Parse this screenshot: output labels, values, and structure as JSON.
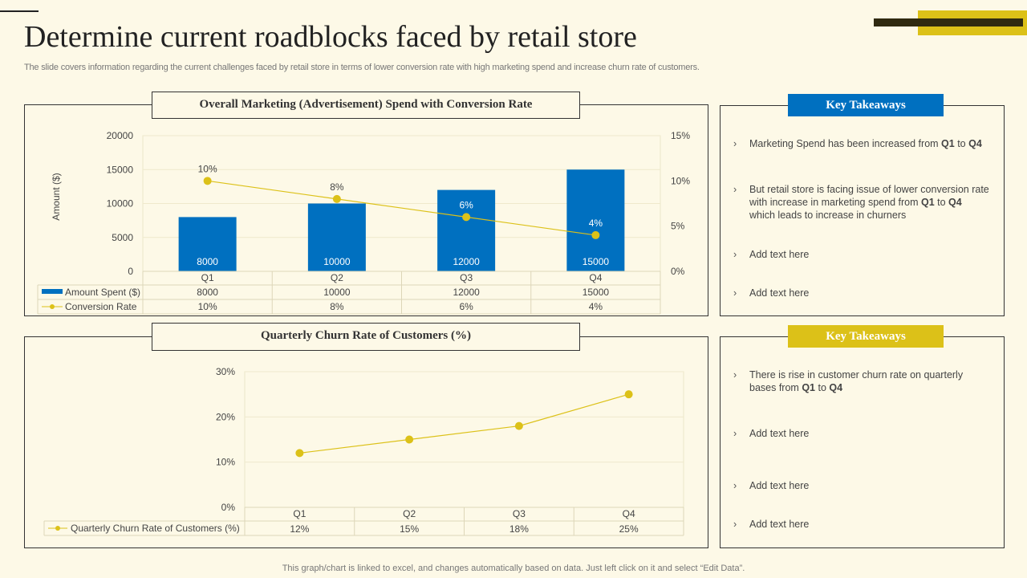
{
  "title": "Determine current roadblocks faced by retail store",
  "subtitle": "The slide covers information regarding the current challenges faced by retail store in terms of lower conversion rate with high marketing spend and increase churn rate of customers.",
  "footer": "This graph/chart is linked to excel,  and changes automatically based on data. Just left click on it and select “Edit Data”.",
  "colors": {
    "background": "#fdf9e7",
    "blue": "#0070c0",
    "yellow": "#dcc118",
    "dark": "#2f2a10"
  },
  "panel1": {
    "title": "Overall Marketing (Advertisement) Spend with Conversion Rate",
    "takeaways_title": "Key Takeaways",
    "takeaways": [
      {
        "parts": [
          "Marketing Spend has been increased from ",
          {
            "b": "Q1"
          },
          " to ",
          {
            "b": "Q4"
          }
        ]
      },
      {
        "parts": [
          "But retail store  is facing issue  of lower conversion  rate with increase in marketing spend from ",
          {
            "b": "Q1"
          },
          " to ",
          {
            "b": "Q4"
          },
          " which leads to increase in churners"
        ]
      },
      {
        "parts": [
          "Add text here"
        ]
      },
      {
        "parts": [
          "Add text here"
        ]
      }
    ]
  },
  "panel2": {
    "title": "Quarterly Churn Rate of Customers (%)",
    "takeaways_title": "Key Takeaways",
    "takeaways": [
      {
        "parts": [
          "There is rise in customer churn rate on quarterly bases from ",
          {
            "b": "Q1"
          },
          " to ",
          {
            "b": "Q4"
          }
        ]
      },
      {
        "parts": [
          "Add text here"
        ]
      },
      {
        "parts": [
          "Add text here"
        ]
      },
      {
        "parts": [
          "Add text here"
        ]
      }
    ]
  },
  "chart_data": [
    {
      "type": "bar+line",
      "categories": [
        "Q1",
        "Q2",
        "Q3",
        "Q4"
      ],
      "ylabel": "Amount  ($)",
      "ylim": [
        0,
        20000
      ],
      "yticks": [
        "0",
        "5000",
        "10000",
        "15000",
        "20000"
      ],
      "y2lim": [
        0,
        15
      ],
      "y2ticks": [
        "0%",
        "5%",
        "10%",
        "15%"
      ],
      "grid": true,
      "legend": "data-table",
      "series": [
        {
          "name": "Amount Spent ($)",
          "type": "bar",
          "values": [
            8000,
            10000,
            12000,
            15000
          ],
          "labels": [
            "8000",
            "10000",
            "12000",
            "15000"
          ]
        },
        {
          "name": "Conversion Rate",
          "type": "line",
          "axis": "secondary",
          "values": [
            10,
            8,
            6,
            4
          ],
          "labels": [
            "10%",
            "8%",
            "6%",
            "4%"
          ]
        }
      ]
    },
    {
      "type": "line",
      "categories": [
        "Q1",
        "Q2",
        "Q3",
        "Q4"
      ],
      "ylim": [
        0,
        30
      ],
      "yticks": [
        "0%",
        "10%",
        "20%",
        "30%"
      ],
      "grid": true,
      "legend": "data-table",
      "series": [
        {
          "name": "Quarterly Churn Rate  of Customers (%)",
          "values": [
            12,
            15,
            18,
            25
          ],
          "labels": [
            "12%",
            "15%",
            "18%",
            "25%"
          ]
        }
      ]
    }
  ]
}
